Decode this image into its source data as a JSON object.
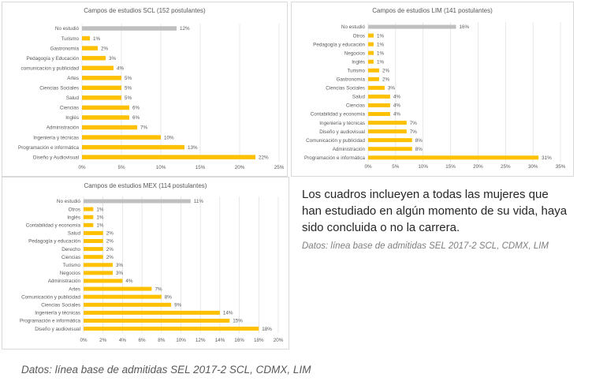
{
  "note": {
    "text": "Los cuadros inclueyen a todas las mujeres que han estudiado en algún momento de su vida, haya sido concluida o no la carrera.",
    "source_small": "Datos: línea base de admitidas SEL 2017-2 SCL, CDMX, LIM",
    "source_big": "Datos: línea base de admitidas SEL 2017-2 SCL, CDMX, LIM"
  },
  "colors": {
    "bar": "#ffc000",
    "highlight": "#bfbfbf",
    "grid": "#d9d9d9",
    "text": "#595959"
  },
  "chart_data": [
    {
      "id": "scl",
      "type": "bar",
      "orientation": "horizontal",
      "title": "Campos de estudios SCL (152 postulantes)",
      "categories": [
        "No estudió",
        "Turismo",
        "Gastronomía",
        "Pedagogía y Educación",
        "comunicacion y publicidad",
        "Artes",
        "Ciencias Sociales",
        "Salud",
        "Ciencias",
        "Inglés",
        "Administración",
        "Ingeniería y técnicas",
        "Programación e informática",
        "Diseño y Audiovisual"
      ],
      "values": [
        12,
        1,
        2,
        3,
        4,
        5,
        5,
        5,
        6,
        6,
        7,
        10,
        13,
        22
      ],
      "value_labels": [
        "12%",
        "1%",
        "2%",
        "3%",
        "4%",
        "5%",
        "5%",
        "5%",
        "6%",
        "6%",
        "7%",
        "10%",
        "13%",
        "22%"
      ],
      "highlight": [
        "No estudió"
      ],
      "xlim": [
        0,
        25
      ],
      "ticks": [
        0,
        5,
        10,
        15,
        20,
        25
      ],
      "tick_labels": [
        "0%",
        "5%",
        "10%",
        "15%",
        "20%",
        "25%"
      ],
      "grid": true
    },
    {
      "id": "lim",
      "type": "bar",
      "orientation": "horizontal",
      "title": "Campos de estudios LIM (141 postulantes)",
      "categories": [
        "No estudió",
        "Otros",
        "Pedagogía y educación",
        "Negocios",
        "Inglés",
        "Turismo",
        "Gastronomía",
        "Ciencias Sociales",
        "Salud",
        "Ciencias",
        "Contabilidad y economía",
        "Ingeniería y técnicas",
        "Diseño y audiovisual",
        "Comunicación y publicidad",
        "Administración",
        "Programación e informática"
      ],
      "values": [
        16,
        1,
        1,
        1,
        1,
        2,
        2,
        3,
        4,
        4,
        4,
        7,
        7,
        8,
        8,
        31
      ],
      "value_labels": [
        "16%",
        "1%",
        "1%",
        "1%",
        "1%",
        "2%",
        "2%",
        "3%",
        "4%",
        "4%",
        "4%",
        "7%",
        "7%",
        "8%",
        "8%",
        "31%"
      ],
      "highlight": [
        "No estudió"
      ],
      "xlim": [
        0,
        35
      ],
      "ticks": [
        0,
        5,
        10,
        15,
        20,
        25,
        30,
        35
      ],
      "tick_labels": [
        "0%",
        "5%",
        "10%",
        "15%",
        "20%",
        "25%",
        "30%",
        "35%"
      ],
      "grid": true
    },
    {
      "id": "mex",
      "type": "bar",
      "orientation": "horizontal",
      "title": "Campos de estudios MEX (114 postulantes)",
      "categories": [
        "No estudió",
        "Otros",
        "Inglés",
        "Contabilidad y economía",
        "Salud",
        "Pedagogía y educación",
        "Derecho",
        "Ciencias",
        "Turismo",
        "Negocios",
        "Administración",
        "Artes",
        "Comunicación y publicidad",
        "Ciencias Sociales",
        "Ingeniería y técnicas",
        "Programación e informática",
        "Diseño y audiovisual"
      ],
      "values": [
        11,
        1,
        1,
        1,
        2,
        2,
        2,
        2,
        3,
        3,
        4,
        7,
        8,
        9,
        14,
        15,
        18
      ],
      "value_labels": [
        "11%",
        "1%",
        "1%",
        "1%",
        "2%",
        "2%",
        "2%",
        "2%",
        "3%",
        "3%",
        "4%",
        "7%",
        "8%",
        "9%",
        "14%",
        "15%",
        "18%"
      ],
      "highlight": [
        "No estudió"
      ],
      "xlim": [
        0,
        20
      ],
      "ticks": [
        0,
        2,
        4,
        6,
        8,
        10,
        12,
        14,
        16,
        18,
        20
      ],
      "tick_labels": [
        "0%",
        "2%",
        "4%",
        "6%",
        "8%",
        "10%",
        "12%",
        "14%",
        "16%",
        "18%",
        "20%"
      ],
      "grid": true
    }
  ]
}
